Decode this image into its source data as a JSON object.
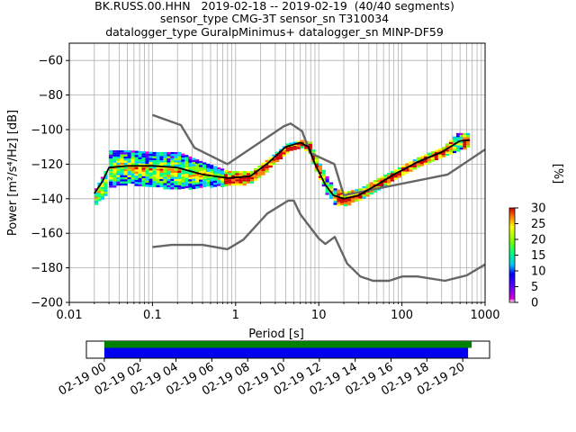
{
  "chart_data": {
    "type": "heatmap",
    "title_lines": [
      "BK.RUSS.00.HHN   2019-02-18 -- 2019-02-19  (40/40 segments)",
      "sensor_type CMG-3T sensor_sn T310034",
      "datalogger_type GuralpMinimus+ datalogger_sn MINP-DF59"
    ],
    "xlabel": "Period [s]",
    "ylabel": "Power [m²/s⁴/Hz] [dB]",
    "x_scale": "log",
    "xlim": [
      0.01,
      1000
    ],
    "ylim": [
      -200,
      -50
    ],
    "x_ticks": [
      {
        "value": 0.01,
        "label": "0.01"
      },
      {
        "value": 0.1,
        "label": "0.1"
      },
      {
        "value": 1,
        "label": "1"
      },
      {
        "value": 10,
        "label": "10"
      },
      {
        "value": 100,
        "label": "100"
      },
      {
        "value": 1000,
        "label": "1000"
      }
    ],
    "y_ticks": [
      {
        "value": -60,
        "label": "−60"
      },
      {
        "value": -80,
        "label": "−80"
      },
      {
        "value": -100,
        "label": "−100"
      },
      {
        "value": -120,
        "label": "−120"
      },
      {
        "value": -140,
        "label": "−140"
      },
      {
        "value": -160,
        "label": "−160"
      },
      {
        "value": -180,
        "label": "−180"
      },
      {
        "value": -200,
        "label": "−200"
      }
    ],
    "grid": true,
    "series": [
      {
        "role": "model-high",
        "color": "#666666",
        "points": [
          [
            0.1,
            -91.5
          ],
          [
            0.22,
            -97.4
          ],
          [
            0.32,
            -110.5
          ],
          [
            0.8,
            -120
          ],
          [
            3.8,
            -98
          ],
          [
            4.6,
            -96.5
          ],
          [
            6.3,
            -101
          ],
          [
            7.9,
            -113.5
          ],
          [
            15.4,
            -120
          ],
          [
            20,
            -138
          ],
          [
            354.8,
            -126
          ],
          [
            1000,
            -111.5
          ]
        ]
      },
      {
        "role": "model-low",
        "color": "#666666",
        "points": [
          [
            0.1,
            -168
          ],
          [
            0.17,
            -166.7
          ],
          [
            0.4,
            -166.7
          ],
          [
            0.8,
            -169.2
          ],
          [
            1.24,
            -163.7
          ],
          [
            2.4,
            -148.6
          ],
          [
            4.3,
            -141.1
          ],
          [
            5,
            -141.1
          ],
          [
            6,
            -149
          ],
          [
            10,
            -163
          ],
          [
            12,
            -166.2
          ],
          [
            15.6,
            -162.1
          ],
          [
            21.9,
            -177.5
          ],
          [
            31.6,
            -185
          ],
          [
            45,
            -187.5
          ],
          [
            70,
            -187.5
          ],
          [
            101,
            -185
          ],
          [
            154,
            -185
          ],
          [
            328,
            -187.5
          ],
          [
            600,
            -184.4
          ],
          [
            1000,
            -178
          ]
        ]
      },
      {
        "role": "mean",
        "color": "#000000",
        "points": [
          [
            0.02,
            -137
          ],
          [
            0.025,
            -130
          ],
          [
            0.03,
            -122
          ],
          [
            0.05,
            -121
          ],
          [
            0.1,
            -121
          ],
          [
            0.2,
            -122
          ],
          [
            0.4,
            -126
          ],
          [
            0.8,
            -128
          ],
          [
            1.5,
            -127
          ],
          [
            2.5,
            -119
          ],
          [
            4,
            -110
          ],
          [
            6,
            -107.5
          ],
          [
            7.5,
            -110
          ],
          [
            9,
            -120
          ],
          [
            12,
            -132
          ],
          [
            15,
            -138
          ],
          [
            20,
            -140
          ],
          [
            30,
            -138
          ],
          [
            50,
            -132
          ],
          [
            80,
            -126
          ],
          [
            150,
            -119
          ],
          [
            300,
            -113
          ],
          [
            500,
            -106.5
          ],
          [
            650,
            -106
          ]
        ]
      }
    ],
    "density_band": [
      {
        "x": 0.02,
        "y_lo": -143,
        "y_hi": -134
      },
      {
        "x": 0.026,
        "y_lo": -138,
        "y_hi": -124
      },
      {
        "x": 0.03,
        "y_lo": -133,
        "y_hi": -112
      },
      {
        "x": 0.05,
        "y_lo": -131,
        "y_hi": -112
      },
      {
        "x": 0.1,
        "y_lo": -133,
        "y_hi": -113
      },
      {
        "x": 0.2,
        "y_lo": -134,
        "y_hi": -113
      },
      {
        "x": 0.4,
        "y_lo": -133,
        "y_hi": -119
      },
      {
        "x": 0.8,
        "y_lo": -132,
        "y_hi": -124
      },
      {
        "x": 1.5,
        "y_lo": -131,
        "y_hi": -124
      },
      {
        "x": 2.5,
        "y_lo": -122,
        "y_hi": -116
      },
      {
        "x": 4,
        "y_lo": -113,
        "y_hi": -108
      },
      {
        "x": 6,
        "y_lo": -110,
        "y_hi": -106
      },
      {
        "x": 7.5,
        "y_lo": -114,
        "y_hi": -107
      },
      {
        "x": 9,
        "y_lo": -124,
        "y_hi": -116
      },
      {
        "x": 12,
        "y_lo": -137,
        "y_hi": -127
      },
      {
        "x": 15,
        "y_lo": -143,
        "y_hi": -134
      },
      {
        "x": 20,
        "y_lo": -144,
        "y_hi": -136
      },
      {
        "x": 30,
        "y_lo": -140,
        "y_hi": -134
      },
      {
        "x": 50,
        "y_lo": -134,
        "y_hi": -128
      },
      {
        "x": 80,
        "y_lo": -129,
        "y_hi": -123
      },
      {
        "x": 150,
        "y_lo": -122,
        "y_hi": -116
      },
      {
        "x": 300,
        "y_lo": -116,
        "y_hi": -110
      },
      {
        "x": 450,
        "y_lo": -112,
        "y_hi": -102
      },
      {
        "x": 650,
        "y_lo": -109,
        "y_hi": -102
      }
    ],
    "colorbar": {
      "label": "[%]",
      "range": [
        0,
        30
      ],
      "ticks": [
        {
          "value": 0,
          "label": "0"
        },
        {
          "value": 5,
          "label": "5"
        },
        {
          "value": 10,
          "label": "10"
        },
        {
          "value": 15,
          "label": "15"
        },
        {
          "value": 20,
          "label": "20"
        },
        {
          "value": 25,
          "label": "25"
        },
        {
          "value": 30,
          "label": "30"
        }
      ],
      "colors": [
        "#ffffff",
        "#d600d6",
        "#5a00ff",
        "#0000ff",
        "#00c8ff",
        "#00ff80",
        "#80ff00",
        "#ffff00",
        "#ff8000",
        "#d00000"
      ]
    },
    "coverage": {
      "tick_labels": [
        "02-19 00",
        "02-19 02",
        "02-19 04",
        "02-19 06",
        "02-19 08",
        "02-19 10",
        "02-19 12",
        "02-19 14",
        "02-19 16",
        "02-19 18",
        "02-19 20"
      ],
      "axis_range_hours": [
        -1,
        21.5
      ],
      "bars": [
        {
          "role": "upper",
          "color": "#008000",
          "start_hour": 0,
          "end_hour": 20.5
        },
        {
          "role": "lower",
          "color": "#0000ee",
          "start_hour": 0,
          "end_hour": 20.3
        }
      ]
    }
  }
}
